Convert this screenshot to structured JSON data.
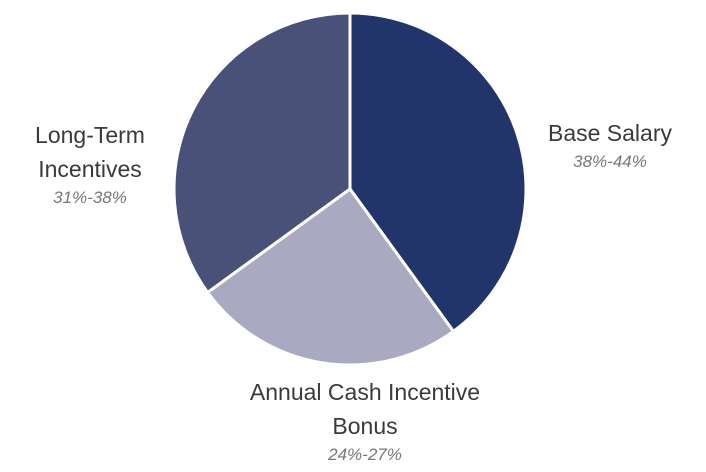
{
  "chart_data": {
    "type": "pie",
    "categories": [
      "Base Salary",
      "Annual Cash Incentive Bonus",
      "Long-Term Incentives"
    ],
    "values": [
      40,
      25,
      35
    ],
    "value_labels": [
      "38%-44%",
      "24%-27%",
      "31%-38%"
    ],
    "colors": [
      "#22356b",
      "#a9a9c1",
      "#4a5179"
    ]
  }
}
